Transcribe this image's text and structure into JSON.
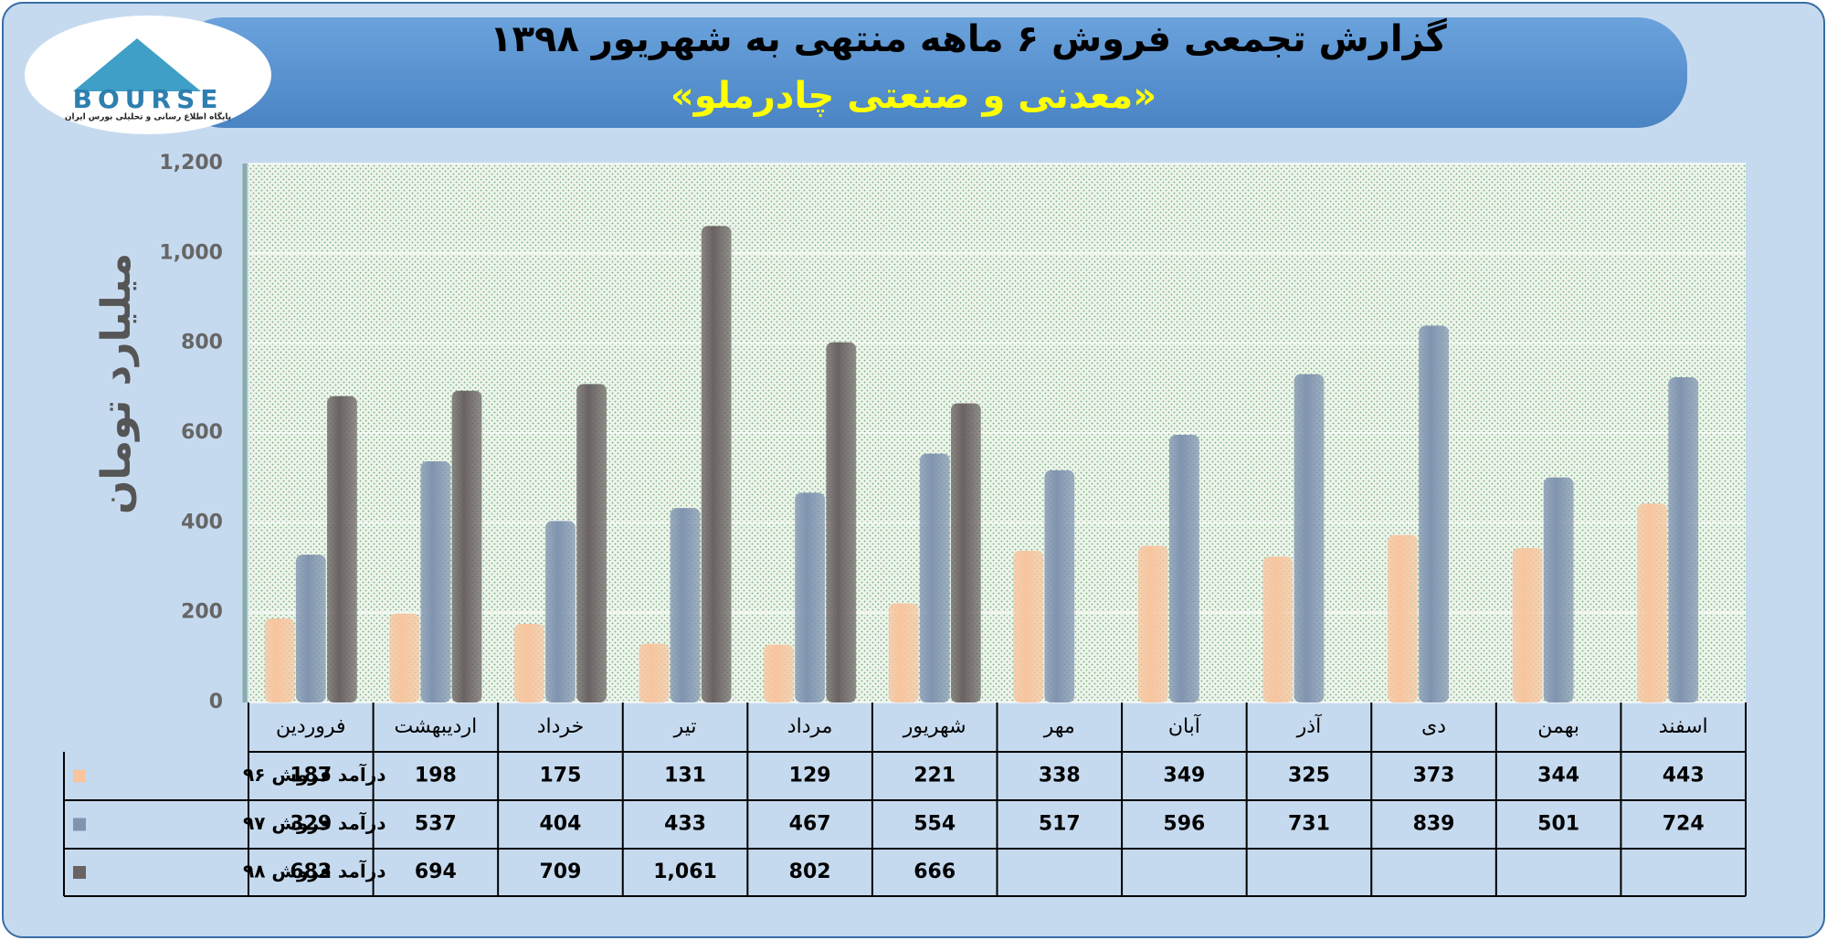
{
  "logo": {
    "text": "BOURSE",
    "tagline": "پایگاه اطلاع رسانی و تحلیلی بورس ایران"
  },
  "chart_data": {
    "type": "bar",
    "title": "گزارش تجمعی فروش ۶ ماهه منتهی به شهریور ۱۳۹۸",
    "subtitle": "«معدنی و صنعتی چادرملو»",
    "y_label": "میلیارد تومان",
    "categories": [
      "فروردین",
      "اردیبهشت",
      "خرداد",
      "تیر",
      "مرداد",
      "شهریور",
      "مهر",
      "آبان",
      "آذر",
      "دی",
      "بهمن",
      "اسفند"
    ],
    "series": [
      {
        "name": "درآمد فروش ۹۶",
        "color": "#f7c59f",
        "values": [
          187,
          198,
          175,
          131,
          129,
          221,
          338,
          349,
          325,
          373,
          344,
          443
        ]
      },
      {
        "name": "درآمد فروش ۹۷",
        "color": "#8094b0",
        "values": [
          329,
          537,
          404,
          433,
          467,
          554,
          517,
          596,
          731,
          839,
          501,
          724
        ]
      },
      {
        "name": "درآمد فروش ۹۸",
        "color": "#6a6363",
        "values": [
          682,
          694,
          709,
          1061,
          802,
          666,
          null,
          null,
          null,
          null,
          null,
          null
        ],
        "value_labels": [
          "682",
          "694",
          "709",
          "1,061",
          "802",
          "666",
          null,
          null,
          null,
          null,
          null,
          null
        ]
      }
    ],
    "ylim": [
      0,
      1200
    ],
    "yticks": [
      0,
      200,
      400,
      600,
      800,
      {
        "value": 1000,
        "label": "1,000"
      },
      {
        "value": 1200,
        "label": "1,200"
      }
    ],
    "grid": true
  }
}
